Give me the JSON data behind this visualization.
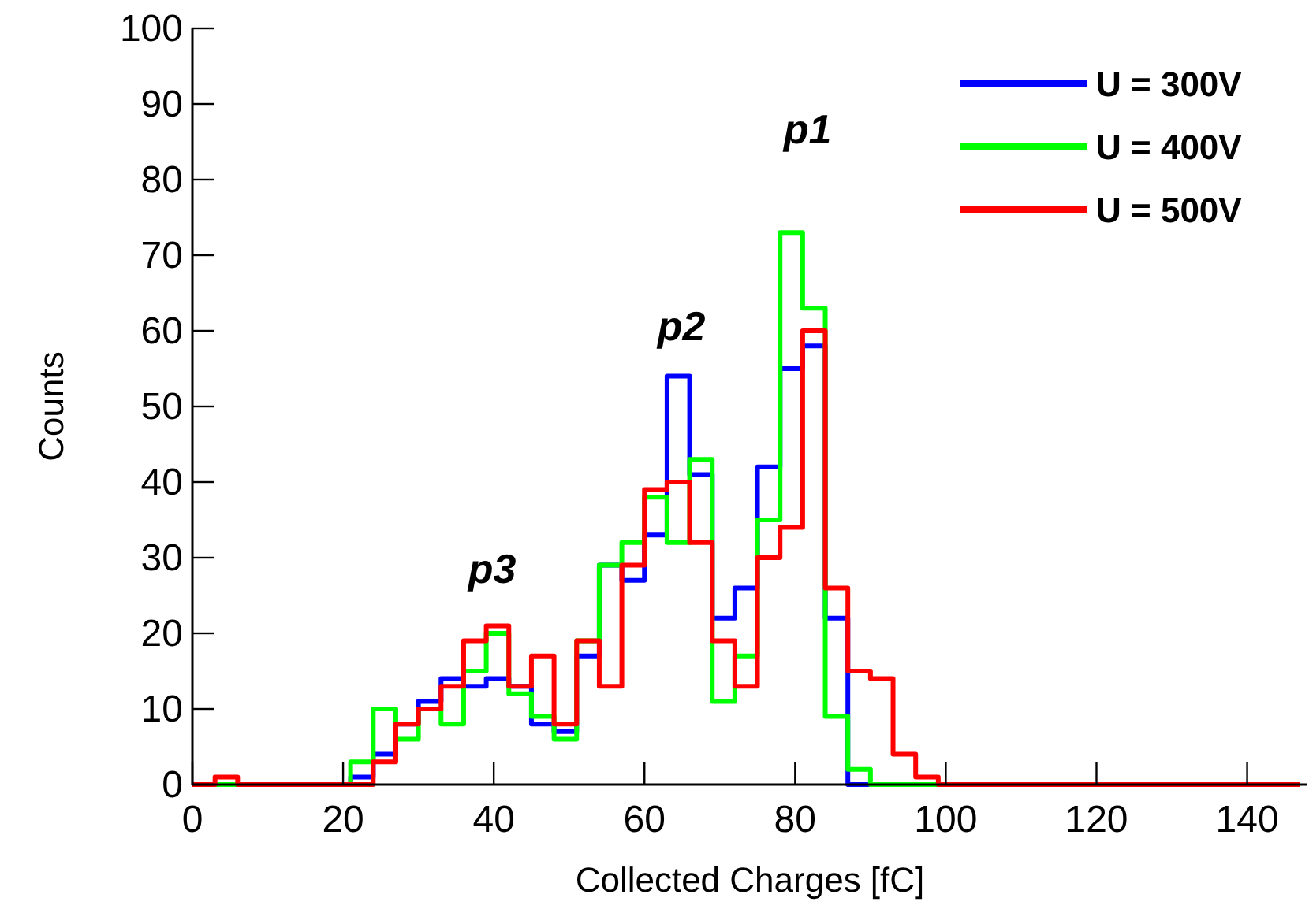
{
  "chart_data": {
    "type": "histogram",
    "xlabel": "Collected Charges [fC]",
    "ylabel": "Counts",
    "bins": [
      0,
      3,
      6,
      9,
      12,
      15,
      18,
      21,
      24,
      27,
      30,
      33,
      36,
      39,
      42,
      45,
      48,
      51,
      54,
      57,
      60,
      63,
      66,
      69,
      72,
      75,
      78,
      81,
      84,
      87,
      90,
      93,
      96,
      99,
      102,
      105,
      108,
      111,
      114,
      117,
      120,
      123,
      126,
      129,
      132,
      135,
      138,
      141,
      144,
      147
    ],
    "series": [
      {
        "name": "U = 300V",
        "color": "#0000ff",
        "values": [
          0,
          0,
          0,
          0,
          0,
          0,
          0,
          1,
          4,
          8,
          11,
          14,
          13,
          14,
          13,
          8,
          7,
          17,
          29,
          27,
          33,
          54,
          41,
          22,
          26,
          42,
          55,
          58,
          22,
          0,
          0,
          0,
          0,
          0,
          0,
          0,
          0,
          0,
          0,
          0,
          0,
          0,
          0,
          0,
          0,
          0,
          0,
          0,
          0
        ]
      },
      {
        "name": "U = 400V",
        "color": "#00ff00",
        "values": [
          0,
          0,
          0,
          0,
          0,
          0,
          0,
          3,
          10,
          6,
          10,
          8,
          15,
          20,
          12,
          9,
          6,
          19,
          29,
          32,
          38,
          32,
          43,
          11,
          17,
          35,
          73,
          63,
          9,
          2,
          0,
          0,
          0,
          0,
          0,
          0,
          0,
          0,
          0,
          0,
          0,
          0,
          0,
          0,
          0,
          0,
          0,
          0,
          0
        ]
      },
      {
        "name": "U = 500V",
        "color": "#ff0000",
        "values": [
          0,
          1,
          0,
          0,
          0,
          0,
          0,
          0,
          3,
          8,
          10,
          13,
          19,
          21,
          13,
          17,
          8,
          19,
          13,
          29,
          39,
          40,
          32,
          19,
          13,
          30,
          34,
          60,
          26,
          15,
          14,
          4,
          1,
          0,
          0,
          0,
          0,
          0,
          0,
          0,
          0,
          0,
          0,
          0,
          0,
          0,
          0,
          0,
          0
        ]
      }
    ],
    "xlim": [
      0,
      148
    ],
    "xticks": [
      0,
      20,
      40,
      60,
      80,
      100,
      120,
      140
    ],
    "ylim": [
      0,
      100
    ],
    "yticks": [
      0,
      10,
      20,
      30,
      40,
      50,
      60,
      70,
      80,
      90,
      100
    ],
    "legend": "top right",
    "annotations": [
      "p1",
      "p2",
      "p3"
    ]
  }
}
